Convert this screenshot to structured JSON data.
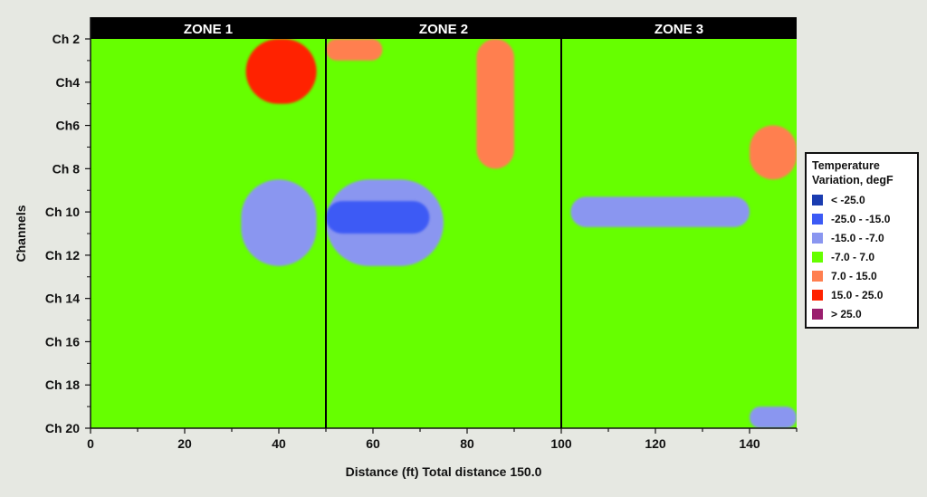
{
  "chart_data": {
    "type": "heatmap",
    "xlabel": "Distance (ft) Total distance 150.0",
    "ylabel": "Channels",
    "xlim": [
      0,
      150
    ],
    "x_ticks": [
      "0",
      "20",
      "40",
      "60",
      "80",
      "100",
      "120",
      "140"
    ],
    "y_categories": [
      "Ch 2",
      "Ch4",
      "Ch6",
      "Ch 8",
      "Ch 10",
      "Ch 12",
      "Ch 14",
      "Ch 16",
      "Ch 18",
      "Ch 20"
    ],
    "zones": [
      {
        "label": "ZONE 1",
        "x_start": 0,
        "x_end": 50
      },
      {
        "label": "ZONE 2",
        "x_start": 50,
        "x_end": 100
      },
      {
        "label": "ZONE 3",
        "x_start": 100,
        "x_end": 150
      }
    ],
    "zone_boundaries": [
      50,
      100
    ],
    "legend": {
      "title_lines": [
        "Temperature",
        "Variation, degF"
      ],
      "entries": [
        {
          "label": "< -25.0",
          "color": "#1a3cb0"
        },
        {
          "label": "-25.0 - -15.0",
          "color": "#3c5af5"
        },
        {
          "label": "-15.0 - -7.0",
          "color": "#8a96f0"
        },
        {
          "label": "-7.0 - 7.0",
          "color": "#66ff00"
        },
        {
          "label": "7.0 - 15.0",
          "color": "#ff7f50"
        },
        {
          "label": "15.0 - 25.0",
          "color": "#ff2200"
        },
        {
          "label": "> 25.0",
          "color": "#9a1e6e"
        }
      ]
    },
    "anomaly_regions": [
      {
        "x": [
          33,
          48
        ],
        "ch": [
          2,
          5
        ],
        "band": "15.0 - 25.0"
      },
      {
        "x": [
          50,
          62
        ],
        "ch": [
          2,
          3
        ],
        "band": "7.0 - 15.0"
      },
      {
        "x": [
          82,
          90
        ],
        "ch": [
          2,
          8
        ],
        "band": "7.0 - 15.0"
      },
      {
        "x": [
          140,
          150
        ],
        "ch": [
          6,
          8.5
        ],
        "band": "7.0 - 15.0"
      },
      {
        "x": [
          32,
          48
        ],
        "ch": [
          8.5,
          12.5
        ],
        "band": "-15.0 - -7.0"
      },
      {
        "x": [
          50,
          75
        ],
        "ch": [
          8.5,
          12.5
        ],
        "band": "-15.0 - -7.0"
      },
      {
        "x": [
          50,
          72
        ],
        "ch": [
          9.5,
          11
        ],
        "band": "-25.0 - -15.0"
      },
      {
        "x": [
          102,
          140
        ],
        "ch": [
          9.3,
          10.7
        ],
        "band": "-15.0 - -7.0"
      },
      {
        "x": [
          140,
          150
        ],
        "ch": [
          19,
          20
        ],
        "band": "-15.0 - -7.0"
      }
    ]
  }
}
